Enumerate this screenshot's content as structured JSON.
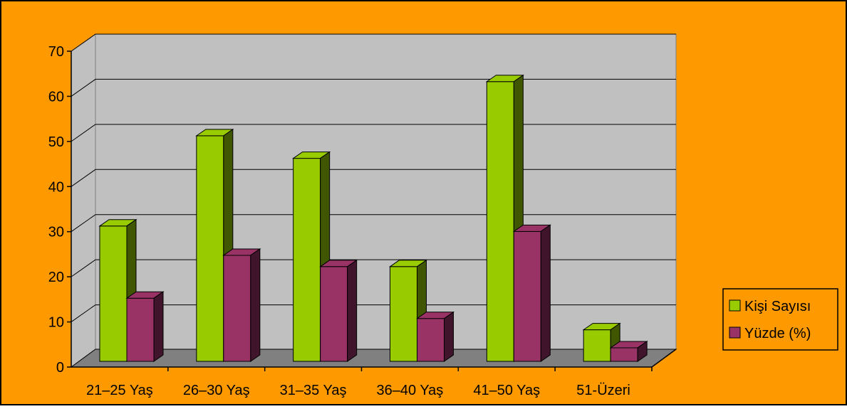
{
  "chart_data": {
    "type": "bar",
    "style": "3d-clustered-column",
    "categories": [
      "21–25 Yaş",
      "26–30 Yaş",
      "31–35 Yaş",
      "36–40 Yaş",
      "41–50 Yaş",
      "51-Üzeri"
    ],
    "series": [
      {
        "name": "Kişi Sayısı",
        "values": [
          30,
          50,
          45,
          21,
          62,
          7
        ],
        "color": "#99CC00"
      },
      {
        "name": "Yüzde (%)",
        "values": [
          14,
          23.5,
          21,
          9.5,
          28.8,
          3
        ],
        "color": "#993366"
      }
    ],
    "ylim": [
      0,
      70
    ],
    "yticks": [
      "0",
      "10",
      "20",
      "30",
      "40",
      "50",
      "60",
      "70"
    ],
    "grid": true,
    "legend": "right",
    "colors": {
      "background": "#FF9900",
      "plot_wall": "#C0C0C0",
      "floor": "#808080"
    }
  }
}
